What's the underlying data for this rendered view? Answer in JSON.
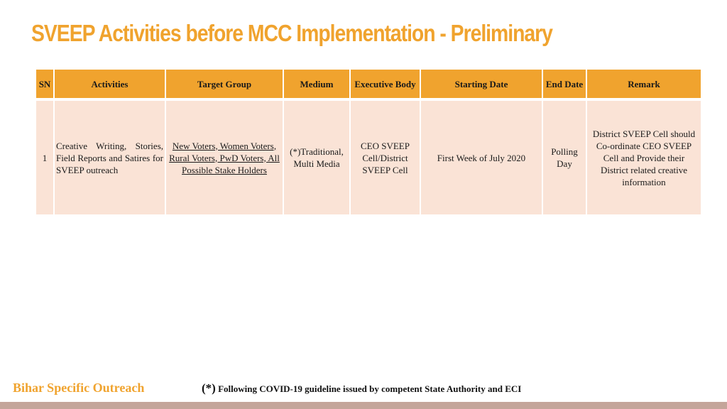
{
  "title": "SVEEP Activities before MCC Implementation - Preliminary",
  "table": {
    "headers": {
      "sn": "SN",
      "activities": "Activities",
      "target_group": "Target Group",
      "medium": "Medium",
      "executive_body": "Executive Body",
      "starting_date": "Starting Date",
      "end_date": "End Date",
      "remark": "Remark"
    },
    "rows": [
      {
        "sn": "1",
        "activities": "Creative Writing, Stories, Field Reports and Satires for SVEEP outreach",
        "target_group": "New Voters, Women Voters, Rural Voters, PwD Voters, All Possible Stake Holders",
        "medium": "(*)Traditional, Multi Media",
        "executive_body": "CEO SVEEP Cell/District SVEEP Cell",
        "starting_date": "First Week of July 2020",
        "end_date": "Polling Day",
        "remark": "District SVEEP Cell should Co-ordinate CEO SVEEP Cell and Provide their District related creative information"
      }
    ]
  },
  "footer": {
    "left_label": "Bihar Specific Outreach",
    "note_marker": "(*)",
    "note_text": "Following COVID-19 guideline issued by competent State Authority and ECI"
  },
  "colors": {
    "accent": "#f0a32e",
    "header_fill": "#f0a32e",
    "row_fill": "#fae3d6",
    "bottom_bar": "#c4a59a"
  }
}
